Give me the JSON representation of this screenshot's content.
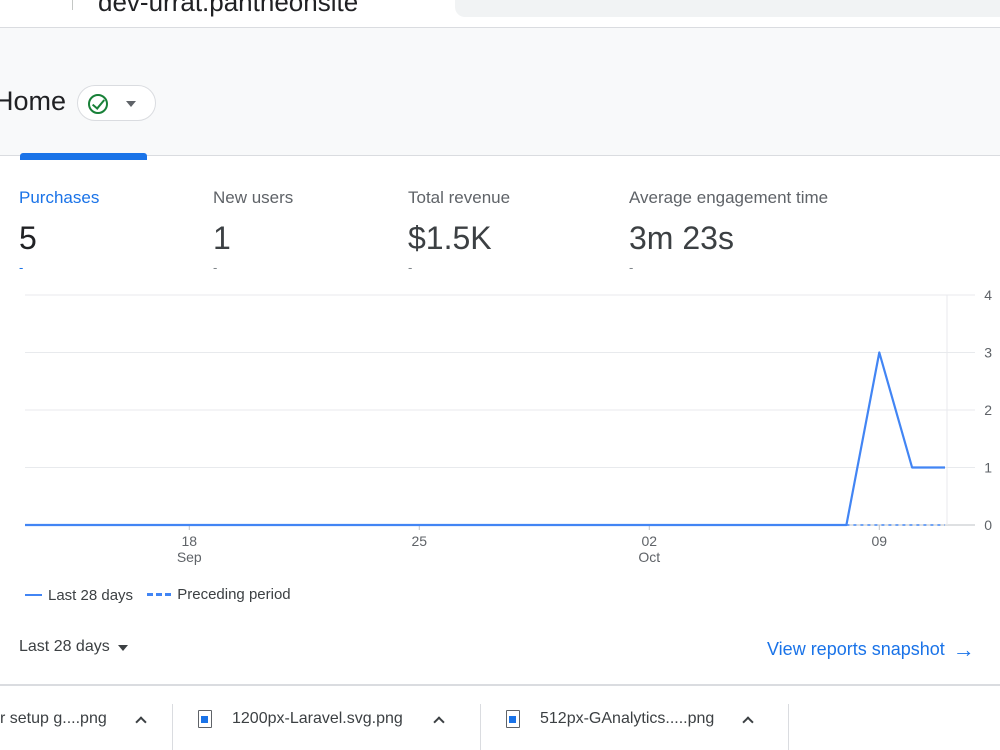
{
  "browser": {
    "url": "dev-urrat.pantheonsite"
  },
  "header": {
    "title": "Home",
    "status_icon": "check-circle-icon",
    "status_color": "#188038"
  },
  "metrics": [
    {
      "label": "Purchases",
      "value": "5",
      "delta": "-",
      "active": true
    },
    {
      "label": "New users",
      "value": "1",
      "delta": "-",
      "active": false
    },
    {
      "label": "Total revenue",
      "value": "$1.5K",
      "delta": "-",
      "active": false
    },
    {
      "label": "Average engagement time",
      "value": "3m 23s",
      "delta": "-",
      "active": false
    }
  ],
  "chart_data": {
    "type": "line",
    "x_ticks": [
      {
        "day": "18",
        "month": "Sep"
      },
      {
        "day": "25",
        "month": ""
      },
      {
        "day": "02",
        "month": "Oct"
      },
      {
        "day": "09",
        "month": ""
      }
    ],
    "y_ticks": [
      "0",
      "1",
      "2",
      "3",
      "4"
    ],
    "ylim": [
      0,
      4
    ],
    "grid": true,
    "legend_position": "bottom-left",
    "accent_color": "#4285f4",
    "series": [
      {
        "name": "Last 28 days",
        "style": "solid",
        "points": [
          [
            "Sep 13",
            0
          ],
          [
            "Sep 14",
            0
          ],
          [
            "Sep 15",
            0
          ],
          [
            "Sep 16",
            0
          ],
          [
            "Sep 17",
            0
          ],
          [
            "Sep 18",
            0
          ],
          [
            "Sep 19",
            0
          ],
          [
            "Sep 20",
            0
          ],
          [
            "Sep 21",
            0
          ],
          [
            "Sep 22",
            0
          ],
          [
            "Sep 23",
            0
          ],
          [
            "Sep 24",
            0
          ],
          [
            "Sep 25",
            0
          ],
          [
            "Sep 26",
            0
          ],
          [
            "Sep 27",
            0
          ],
          [
            "Sep 28",
            0
          ],
          [
            "Sep 29",
            0
          ],
          [
            "Sep 30",
            0
          ],
          [
            "Oct 01",
            0
          ],
          [
            "Oct 02",
            0
          ],
          [
            "Oct 03",
            0
          ],
          [
            "Oct 04",
            0
          ],
          [
            "Oct 05",
            0
          ],
          [
            "Oct 06",
            0
          ],
          [
            "Oct 07",
            0
          ],
          [
            "Oct 08",
            0
          ],
          [
            "Oct 09",
            3
          ],
          [
            "Oct 10",
            1
          ],
          [
            "Oct 11",
            1
          ]
        ]
      },
      {
        "name": "Preceding period",
        "style": "dashed",
        "points": [
          [
            "Oct 08",
            0
          ],
          [
            "Oct 09",
            0
          ],
          [
            "Oct 10",
            0
          ],
          [
            "Oct 11",
            0
          ]
        ]
      }
    ]
  },
  "legend": {
    "current": "Last 28 days",
    "previous": "Preceding period"
  },
  "footer": {
    "date_range": "Last 28 days",
    "view_link": "View reports snapshot",
    "view_link_arrow": "→"
  },
  "downloads": [
    {
      "name": "r setup g....png"
    },
    {
      "name": "1200px-Laravel.svg.png"
    },
    {
      "name": "512px-GAnalytics.....png"
    }
  ]
}
